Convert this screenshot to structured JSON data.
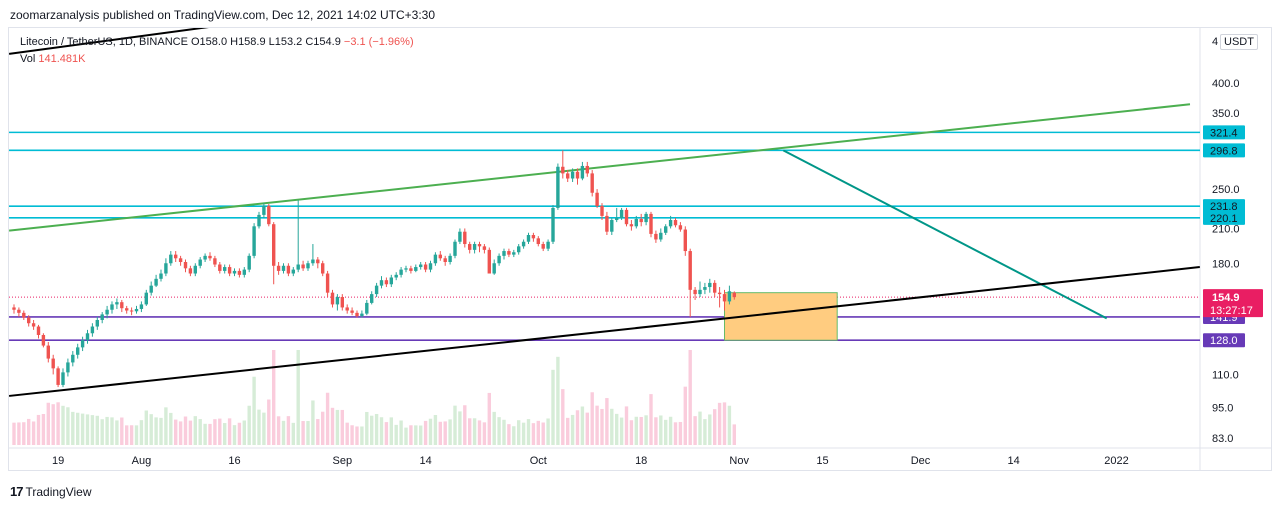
{
  "header": {
    "publisher_line": "zoomarzanalysis published on TradingView.com, Dec 12, 2021 14:02 UTC+3:30"
  },
  "legend": {
    "symbol": "Litecoin / TetherUS, 1D, BINANCE",
    "ohlc_prefix": "O158.0 H158.9 L153.2 C154.9",
    "change": "−3.1 (−1.96%)",
    "volume_label": "Vol",
    "volume_value": "141.481K"
  },
  "price_scale": {
    "currency": "USDT",
    "currency_lead": "4"
  },
  "footer": {
    "logo_mark": "17",
    "brand": "TradingView"
  },
  "colors": {
    "up": "#26a69a",
    "down": "#ef5350",
    "cyan_level": "#00bcd4",
    "purple_level": "#673ab7",
    "green_trend": "#4caf50",
    "teal_trend": "#009688",
    "black_trend": "#000000",
    "target_box_fill": "#ffcc80",
    "last_price_label": "#e91e63"
  },
  "chart_data": {
    "type": "candlestick",
    "symbol": "Litecoin / TetherUS",
    "interval": "1D",
    "exchange": "BINANCE",
    "scale": "log",
    "y_ticks": [
      83.0,
      95.0,
      110.0,
      180.0,
      210.0,
      250.0,
      350.0,
      400.0
    ],
    "x_ticks": [
      "19",
      "Aug",
      "16",
      "Sep",
      "14",
      "Oct",
      "18",
      "Nov",
      "15",
      "Dec",
      "14",
      "2022"
    ],
    "last_price": {
      "value": "154.9",
      "countdown": "13:27:17"
    },
    "horizontal_levels": [
      {
        "value": 321.4,
        "label": "321.4",
        "color": "#00bcd4"
      },
      {
        "value": 296.8,
        "label": "296.8",
        "color": "#00bcd4"
      },
      {
        "value": 231.8,
        "label": "231.8",
        "color": "#00bcd4"
      },
      {
        "value": 220.1,
        "label": "220.1",
        "color": "#00bcd4"
      },
      {
        "value": 141.9,
        "label": "141.9",
        "color": "#673ab7"
      },
      {
        "value": 128.0,
        "label": "128.0",
        "color": "#673ab7"
      }
    ],
    "candles": [
      [
        148,
        146.5,
        150,
        144
      ],
      [
        146.5,
        144.5,
        148,
        142
      ],
      [
        144.5,
        141.5,
        146,
        140
      ],
      [
        141.5,
        138,
        143,
        136
      ],
      [
        138,
        136,
        140,
        134
      ],
      [
        136,
        131,
        137,
        129
      ],
      [
        131,
        125,
        132,
        124
      ],
      [
        125,
        118,
        127,
        116
      ],
      [
        118,
        113,
        120,
        110
      ],
      [
        113,
        105,
        114,
        104
      ],
      [
        105,
        111,
        113,
        104
      ],
      [
        111,
        116,
        118,
        109
      ],
      [
        116,
        120,
        122,
        114
      ],
      [
        120,
        124,
        126,
        118
      ],
      [
        124,
        128,
        130,
        122
      ],
      [
        128,
        132,
        134,
        126
      ],
      [
        132,
        136,
        138,
        130
      ],
      [
        136,
        140,
        142,
        134
      ],
      [
        140,
        143.5,
        145,
        138
      ],
      [
        143.5,
        146.5,
        149,
        141
      ],
      [
        146.5,
        150,
        152,
        144
      ],
      [
        150,
        151.5,
        154,
        147
      ],
      [
        151.5,
        147.5,
        153,
        145
      ],
      [
        147.5,
        146,
        149,
        144
      ],
      [
        146,
        145.5,
        148,
        143
      ],
      [
        145.5,
        147,
        149,
        144
      ],
      [
        147,
        150,
        152,
        145
      ],
      [
        150,
        158,
        160,
        149
      ],
      [
        158,
        163,
        166,
        156
      ],
      [
        163,
        168,
        171,
        162
      ],
      [
        168,
        172,
        175,
        166
      ],
      [
        172,
        180,
        184,
        170
      ],
      [
        180,
        187,
        190,
        178
      ],
      [
        187,
        184,
        190,
        181
      ],
      [
        184,
        181,
        186,
        178
      ],
      [
        181,
        176,
        183,
        173
      ],
      [
        176,
        172,
        178,
        170
      ],
      [
        172,
        178,
        180,
        170
      ],
      [
        178,
        183,
        185,
        176
      ],
      [
        183,
        186,
        188,
        181
      ],
      [
        186,
        184,
        189,
        182
      ],
      [
        184,
        179,
        186,
        177
      ],
      [
        179,
        174,
        181,
        172
      ],
      [
        174,
        177,
        179,
        172
      ],
      [
        177,
        172,
        179,
        170
      ],
      [
        172,
        174,
        176,
        170
      ],
      [
        174,
        171,
        176,
        169
      ],
      [
        171,
        175,
        177,
        169
      ],
      [
        175,
        186,
        188,
        173
      ],
      [
        186,
        212,
        215,
        184
      ],
      [
        212,
        223,
        226,
        210
      ],
      [
        223,
        232,
        235,
        220
      ],
      [
        232,
        214,
        234,
        212
      ],
      [
        214,
        178,
        216,
        164
      ],
      [
        178,
        174,
        181,
        171
      ],
      [
        174,
        178,
        180,
        172
      ],
      [
        178,
        172,
        180,
        170
      ],
      [
        172,
        175,
        177,
        170
      ],
      [
        175,
        179,
        238,
        173
      ],
      [
        179,
        176,
        182,
        174
      ],
      [
        176,
        180,
        182,
        174
      ],
      [
        180,
        183,
        196,
        178
      ],
      [
        183,
        180,
        185,
        176
      ],
      [
        180,
        172,
        182,
        170
      ],
      [
        172,
        158,
        174,
        155
      ],
      [
        158,
        150,
        160,
        148
      ],
      [
        150,
        155,
        157,
        146
      ],
      [
        155,
        148,
        157,
        146
      ],
      [
        148,
        146,
        150,
        144
      ],
      [
        146,
        144.5,
        148,
        143
      ],
      [
        144.5,
        142.5,
        146,
        141.5
      ],
      [
        142.5,
        144,
        146,
        141.5
      ],
      [
        144,
        151,
        153,
        143
      ],
      [
        151,
        157,
        159,
        150
      ],
      [
        157,
        163,
        165,
        155
      ],
      [
        163,
        167,
        170,
        161
      ],
      [
        167,
        164,
        169,
        162
      ],
      [
        164,
        169,
        171,
        162
      ],
      [
        169,
        171,
        173,
        167
      ],
      [
        171,
        175,
        177,
        169
      ],
      [
        175,
        176,
        178,
        173
      ],
      [
        176,
        174,
        178,
        172
      ],
      [
        174,
        177,
        179,
        173
      ],
      [
        177,
        179,
        181,
        175
      ],
      [
        179,
        175,
        181,
        173
      ],
      [
        175,
        180,
        182,
        173
      ],
      [
        180,
        187,
        189,
        178
      ],
      [
        187,
        184,
        190,
        182
      ],
      [
        184,
        181,
        186,
        178
      ],
      [
        181,
        186,
        188,
        179
      ],
      [
        186,
        198,
        200,
        184
      ],
      [
        198,
        207,
        210,
        196
      ],
      [
        207,
        196,
        210,
        193
      ],
      [
        196,
        191,
        198,
        188
      ],
      [
        191,
        196,
        198,
        188
      ],
      [
        196,
        194,
        198,
        189
      ],
      [
        194,
        191,
        196,
        188
      ],
      [
        191,
        172,
        193,
        172
      ],
      [
        172,
        180,
        183,
        171
      ],
      [
        180,
        186,
        188,
        178
      ],
      [
        186,
        190,
        192,
        183
      ],
      [
        190,
        187,
        192,
        185
      ],
      [
        187,
        189,
        191,
        185
      ],
      [
        189,
        194,
        196,
        187
      ],
      [
        194,
        198,
        200,
        192
      ],
      [
        198,
        204,
        206,
        196
      ],
      [
        204,
        201,
        206,
        198
      ],
      [
        201,
        196,
        203,
        194
      ],
      [
        196,
        192,
        198,
        190
      ],
      [
        192,
        198,
        200,
        190
      ],
      [
        198,
        230,
        233,
        196
      ],
      [
        230,
        276,
        280,
        228
      ],
      [
        276,
        268,
        296.8,
        262
      ],
      [
        268,
        262,
        272,
        258
      ],
      [
        262,
        270,
        274,
        258
      ],
      [
        270,
        262,
        274,
        255
      ],
      [
        262,
        277,
        282,
        260
      ],
      [
        277,
        268,
        282,
        264
      ],
      [
        268,
        246,
        272,
        242
      ],
      [
        246,
        232,
        250,
        230
      ],
      [
        232,
        222,
        235,
        218
      ],
      [
        222,
        207,
        226,
        204
      ],
      [
        207,
        218,
        220,
        204
      ],
      [
        218,
        220,
        230,
        216
      ],
      [
        220,
        228,
        230,
        218
      ],
      [
        228,
        214,
        230,
        212
      ],
      [
        214,
        212,
        218,
        208
      ],
      [
        212,
        219,
        222,
        210
      ],
      [
        219,
        216,
        224,
        212
      ],
      [
        216,
        224,
        226,
        213
      ],
      [
        224,
        205,
        226,
        202
      ],
      [
        205,
        200,
        208,
        197
      ],
      [
        200,
        206,
        210,
        198
      ],
      [
        206,
        212,
        214,
        204
      ],
      [
        212,
        218,
        222,
        210
      ],
      [
        218,
        213,
        220,
        211
      ],
      [
        213,
        209,
        216,
        207
      ],
      [
        209,
        190,
        212,
        186
      ],
      [
        190,
        160,
        192,
        141.9
      ],
      [
        160,
        157,
        162,
        153
      ],
      [
        157,
        160,
        166,
        155
      ],
      [
        160,
        162,
        165,
        157
      ],
      [
        162,
        165,
        168,
        158
      ],
      [
        165,
        158,
        167,
        155
      ],
      [
        158,
        157,
        162,
        148
      ],
      [
        157,
        152,
        160,
        146
      ],
      [
        152,
        159,
        163,
        150
      ],
      [
        158,
        154.9,
        158.9,
        153.2
      ]
    ],
    "projection_box": {
      "from_candle": 145,
      "to_candle": 168,
      "top": 158,
      "bottom": 128.0
    }
  }
}
